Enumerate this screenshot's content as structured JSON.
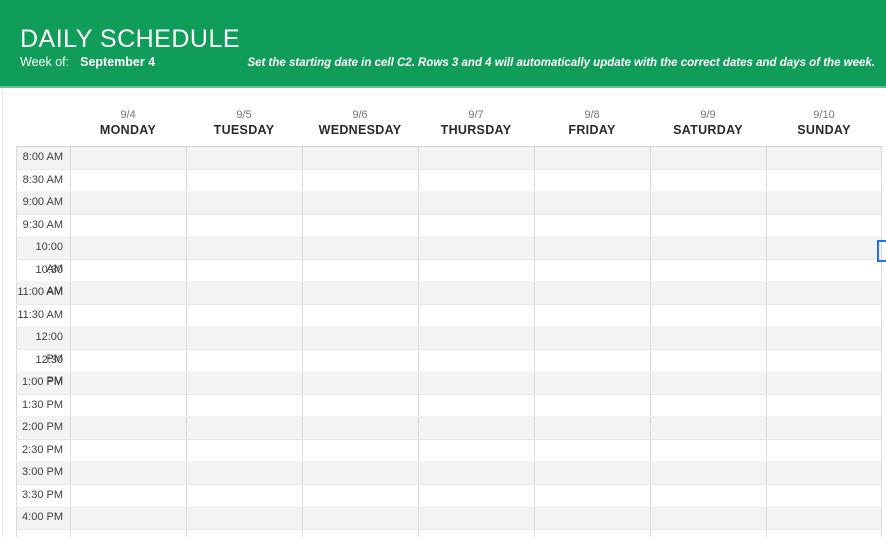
{
  "header": {
    "title": "DAILY SCHEDULE",
    "week_of_label": "Week of:",
    "week_of_value": "September 4",
    "instruction": "Set the starting date in cell C2. Rows 3 and 4 will automatically update with the correct dates and days of the week."
  },
  "columns": [
    {
      "date": "9/4",
      "day": "MONDAY"
    },
    {
      "date": "9/5",
      "day": "TUESDAY"
    },
    {
      "date": "9/6",
      "day": "WEDNESDAY"
    },
    {
      "date": "9/7",
      "day": "THURSDAY"
    },
    {
      "date": "9/8",
      "day": "FRIDAY"
    },
    {
      "date": "9/9",
      "day": "SATURDAY"
    },
    {
      "date": "9/10",
      "day": "SUNDAY"
    }
  ],
  "times": [
    "8:00 AM",
    "8:30 AM",
    "9:00 AM",
    "9:30 AM",
    "10:00 AM",
    "10:30 AM",
    "11:00 AM",
    "11:30 AM",
    "12:00 PM",
    "12:30 PM",
    "1:00 PM",
    "1:30 PM",
    "2:00 PM",
    "2:30 PM",
    "3:00 PM",
    "3:30 PM",
    "4:00 PM"
  ],
  "colors": {
    "header_green": "#109D59",
    "header_green_light": "#66BD8F",
    "shaded_row": "#F3F3F3",
    "grid_border": "#D9D9D9",
    "selection_blue": "#1A73E8",
    "date_gray": "#757575",
    "day_dark": "#2B2B2B",
    "time_gray": "#3F3F3F"
  }
}
